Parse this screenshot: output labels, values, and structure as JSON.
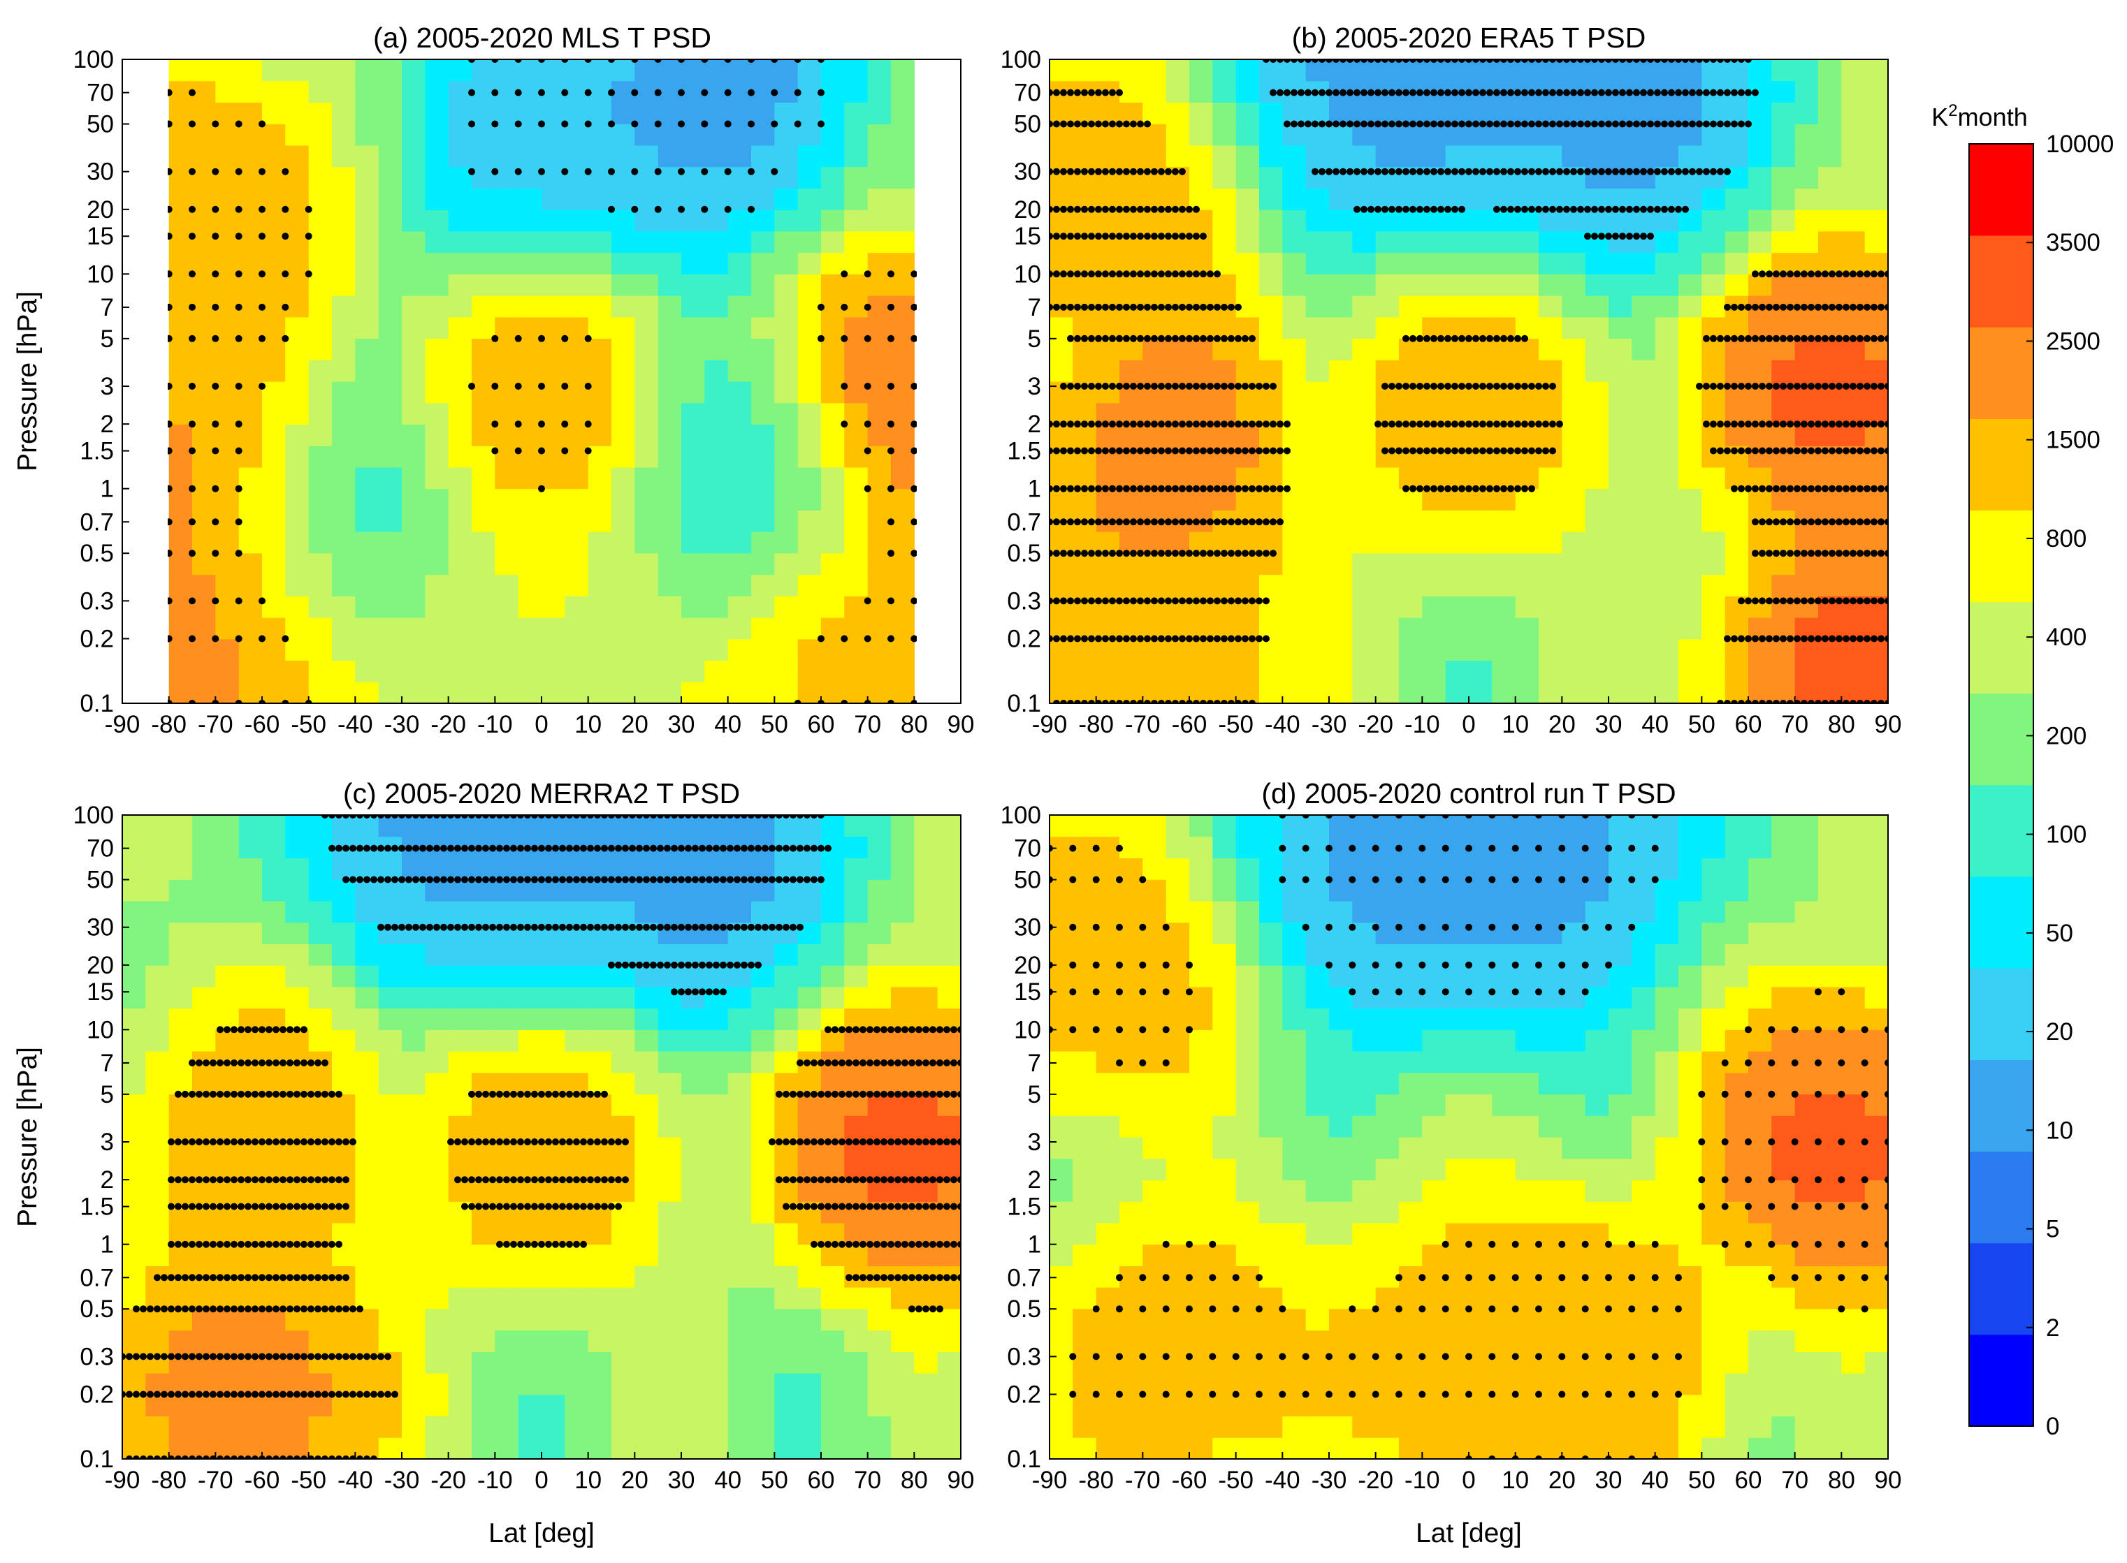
{
  "figure": {
    "colorbar": {
      "label": "K",
      "label_sup": "2",
      "label_rest": "month",
      "levels": [
        "0",
        "2",
        "5",
        "10",
        "20",
        "50",
        "100",
        "200",
        "400",
        "800",
        "1500",
        "2500",
        "3500",
        "10000"
      ],
      "colors": [
        "#0000ff",
        "#1846f0",
        "#2a7cf0",
        "#3aa5ef",
        "#3ad0f5",
        "#00eeff",
        "#3cf0c8",
        "#82f580",
        "#c8f564",
        "#ffff00",
        "#ffc000",
        "#ff9020",
        "#ff5a1a",
        "#ff0000"
      ]
    }
  },
  "chart_data": [
    {
      "id": "a",
      "type": "heatmap",
      "title": "(a) 2005-2020 MLS T PSD",
      "xlabel": "",
      "ylabel": "Pressure [hPa]",
      "xlim": [
        -90,
        90
      ],
      "x_data_range": [
        -80,
        80
      ],
      "ylim": [
        100,
        0.1
      ],
      "yscale": "log",
      "xticks": [
        -90,
        -80,
        -70,
        -60,
        -50,
        -40,
        -30,
        -20,
        -10,
        0,
        10,
        20,
        30,
        40,
        50,
        60,
        70,
        80,
        90
      ],
      "yticks": [
        "0.1",
        "0.2",
        "0.3",
        "0.5",
        "0.7",
        "1",
        "1.5",
        "2",
        "3",
        "5",
        "7",
        "10",
        "15",
        "20",
        "30",
        "50",
        "70",
        "100"
      ],
      "stipple": "dots",
      "features": [
        {
          "lat": -65,
          "p": 0.2,
          "level": 12
        },
        {
          "lat": 65,
          "p": 0.2,
          "level": 11
        },
        {
          "lat": 0,
          "p": 0.2,
          "level": 9
        },
        {
          "lat": 0,
          "p": 2.5,
          "level": 11
        },
        {
          "lat": 80,
          "p": 2.5,
          "level": 13
        },
        {
          "lat": -70,
          "p": 1.2,
          "level": 12
        },
        {
          "lat": -70,
          "p": 20,
          "level": 11
        },
        {
          "lat": 0,
          "p": 50,
          "level": 3
        },
        {
          "lat": 35,
          "p": 70,
          "level": 2
        },
        {
          "lat": -45,
          "p": 0.7,
          "level": 5
        },
        {
          "lat": 45,
          "p": 1.0,
          "level": 5
        }
      ]
    },
    {
      "id": "b",
      "type": "heatmap",
      "title": "(b) 2005-2020 ERA5 T PSD",
      "xlabel": "",
      "ylabel": "",
      "xlim": [
        -90,
        90
      ],
      "x_data_range": [
        -90,
        90
      ],
      "ylim": [
        100,
        0.1
      ],
      "yscale": "log",
      "xticks": [
        -90,
        -80,
        -70,
        -60,
        -50,
        -40,
        -30,
        -20,
        -10,
        0,
        10,
        20,
        30,
        40,
        50,
        60,
        70,
        80,
        90
      ],
      "yticks": [
        "0.1",
        "0.2",
        "0.3",
        "0.5",
        "0.7",
        "1",
        "1.5",
        "2",
        "3",
        "5",
        "7",
        "10",
        "15",
        "20",
        "30",
        "50",
        "70",
        "100"
      ],
      "stipple": "lines",
      "features": [
        {
          "lat": -65,
          "p": 0.15,
          "level": 11
        },
        {
          "lat": 80,
          "p": 0.12,
          "level": 13
        },
        {
          "lat": 0,
          "p": 2.5,
          "level": 11
        },
        {
          "lat": 80,
          "p": 3,
          "level": 13
        },
        {
          "lat": -65,
          "p": 1.5,
          "level": 12
        },
        {
          "lat": -80,
          "p": 20,
          "level": 11
        },
        {
          "lat": 0,
          "p": 50,
          "level": 3
        },
        {
          "lat": 35,
          "p": 60,
          "level": 2
        },
        {
          "lat": -20,
          "p": 100,
          "level": 2
        }
      ]
    },
    {
      "id": "c",
      "type": "heatmap",
      "title": "(c) 2005-2020 MERRA2 T PSD",
      "xlabel": "Lat [deg]",
      "ylabel": "Pressure [hPa]",
      "xlim": [
        -90,
        90
      ],
      "x_data_range": [
        -90,
        90
      ],
      "ylim": [
        100,
        0.1
      ],
      "yscale": "log",
      "xticks": [
        -90,
        -80,
        -70,
        -60,
        -50,
        -40,
        -30,
        -20,
        -10,
        0,
        10,
        20,
        30,
        40,
        50,
        60,
        70,
        80,
        90
      ],
      "yticks": [
        "0.1",
        "0.2",
        "0.3",
        "0.5",
        "0.7",
        "1",
        "1.5",
        "2",
        "3",
        "5",
        "7",
        "10",
        "15",
        "20",
        "30",
        "50",
        "70",
        "100"
      ],
      "stipple": "lines",
      "features": [
        {
          "lat": -62,
          "p": 0.2,
          "level": 12
        },
        {
          "lat": 80,
          "p": 3,
          "level": 13
        },
        {
          "lat": 0,
          "p": 3,
          "level": 11
        },
        {
          "lat": -62,
          "p": 3,
          "level": 11
        },
        {
          "lat": 0,
          "p": 50,
          "level": 3
        },
        {
          "lat": 35,
          "p": 60,
          "level": 2
        },
        {
          "lat": -20,
          "p": 100,
          "level": 2
        }
      ]
    },
    {
      "id": "d",
      "type": "heatmap",
      "title": "(d) 2005-2020 control run T PSD",
      "xlabel": "Lat [deg]",
      "ylabel": "",
      "xlim": [
        -90,
        90
      ],
      "x_data_range": [
        -90,
        90
      ],
      "ylim": [
        100,
        0.1
      ],
      "yscale": "log",
      "xticks": [
        -90,
        -80,
        -70,
        -60,
        -50,
        -40,
        -30,
        -20,
        -10,
        0,
        10,
        20,
        30,
        40,
        50,
        60,
        70,
        80,
        90
      ],
      "yticks": [
        "0.1",
        "0.2",
        "0.3",
        "0.5",
        "0.7",
        "1",
        "1.5",
        "2",
        "3",
        "5",
        "7",
        "10",
        "15",
        "20",
        "30",
        "50",
        "70",
        "100"
      ],
      "stipple": "dots",
      "features": [
        {
          "lat": -60,
          "p": 0.3,
          "level": 11
        },
        {
          "lat": 0,
          "p": 0.3,
          "level": 11
        },
        {
          "lat": 30,
          "p": 0.3,
          "level": 11
        },
        {
          "lat": 80,
          "p": 3,
          "level": 13
        },
        {
          "lat": -80,
          "p": 20,
          "level": 11
        },
        {
          "lat": 0,
          "p": 50,
          "level": 3
        },
        {
          "lat": -18,
          "p": 80,
          "level": 2
        },
        {
          "lat": 18,
          "p": 80,
          "level": 2
        }
      ]
    }
  ]
}
